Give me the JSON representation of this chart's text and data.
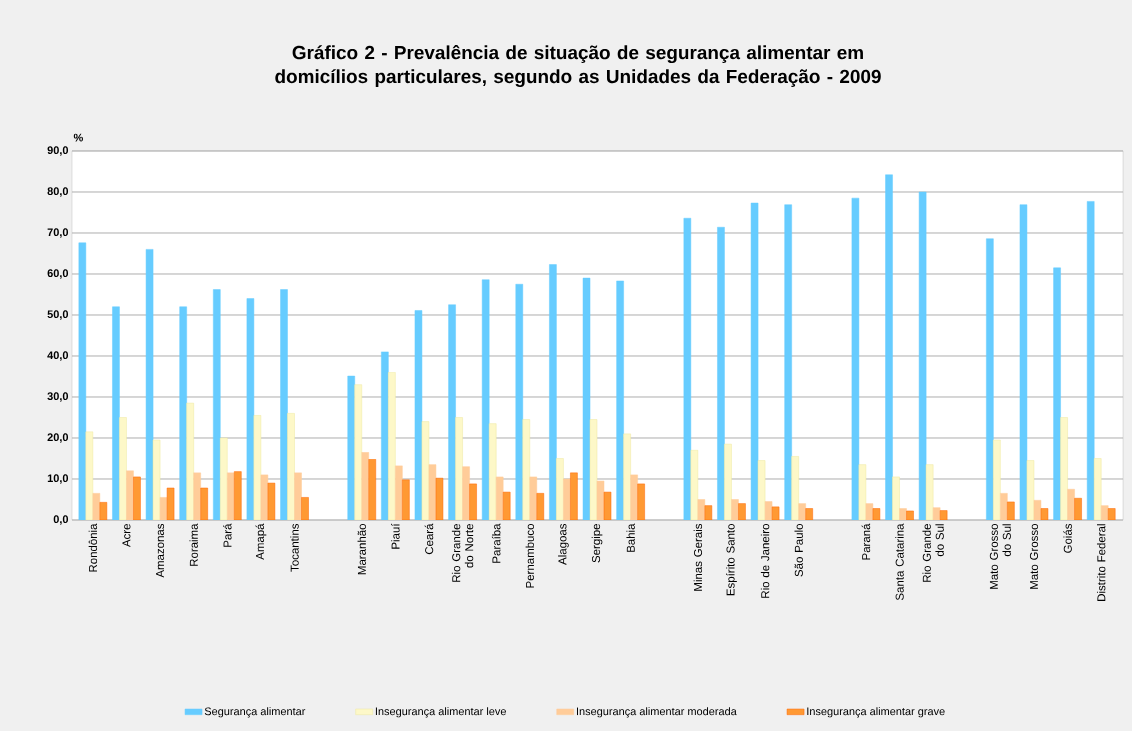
{
  "chart_data": {
    "type": "bar",
    "title": "Gráfico 2 - Prevalência de situação de segurança alimentar em domicílios particulares, segundo as Unidades da Federação -    2009",
    "ylabel": "%",
    "categories": [
      "Rondônia",
      "Acre",
      "Amazonas",
      "Roraima",
      "Pará",
      "Amapá",
      "Tocantins",
      null,
      "Maranhão",
      "Piauí",
      "Ceará",
      "Rio Grande do Norte",
      "Paraíba",
      "Pernambuco",
      "Alagoas",
      "Sergipe",
      "Bahia",
      null,
      "Minas Gerais",
      "Espírito Santo",
      "Rio de Janeiro",
      "São Paulo",
      null,
      "Paraná",
      "Santa Catarina",
      "Rio Grande do Sul",
      null,
      "Mato Grosso do Sul",
      "Mato Grosso",
      "Goiás",
      "Distrito Federal"
    ],
    "series": [
      {
        "name": "Segurança alimentar",
        "color": "#66ccff",
        "values": [
          67.6,
          52.0,
          66.0,
          52.0,
          56.2,
          54.0,
          56.2,
          null,
          35.1,
          41.0,
          51.1,
          52.5,
          58.6,
          57.5,
          62.3,
          59.0,
          58.3,
          null,
          73.6,
          71.4,
          77.3,
          76.9,
          null,
          78.5,
          84.2,
          80.0,
          null,
          68.6,
          76.9,
          61.5,
          77.7
        ]
      },
      {
        "name": "Insegurança alimentar leve",
        "color": "#fdf8c8",
        "values": [
          21.5,
          25.0,
          19.5,
          28.5,
          20.0,
          25.5,
          26.0,
          null,
          33.0,
          36.0,
          24.0,
          25.0,
          23.5,
          24.5,
          15.0,
          24.5,
          21.0,
          null,
          17.0,
          18.5,
          14.5,
          15.5,
          null,
          13.5,
          10.5,
          13.5,
          null,
          19.5,
          14.5,
          25.0,
          15.0
        ]
      },
      {
        "name": "Insegurança alimentar moderada",
        "color": "#ffcc99",
        "values": [
          6.5,
          12.0,
          5.5,
          11.5,
          11.5,
          11.0,
          11.5,
          null,
          16.5,
          13.2,
          13.5,
          13.0,
          10.5,
          10.5,
          10.0,
          9.5,
          11.0,
          null,
          5.0,
          5.0,
          4.5,
          4.0,
          null,
          4.0,
          2.8,
          3.0,
          null,
          6.5,
          4.8,
          7.5,
          3.5
        ]
      },
      {
        "name": "Insegurança alimentar grave",
        "color": "#ff9933",
        "values": [
          4.3,
          10.5,
          7.8,
          7.8,
          11.8,
          9.0,
          5.5,
          null,
          14.8,
          9.8,
          10.2,
          8.8,
          6.8,
          6.5,
          11.5,
          6.8,
          8.8,
          null,
          3.5,
          4.0,
          3.2,
          2.8,
          null,
          2.8,
          2.2,
          2.3,
          null,
          4.4,
          2.8,
          5.3,
          2.8
        ]
      }
    ],
    "ylim": [
      0,
      90
    ],
    "yticks": [
      {
        "value": 0,
        "label": "0,0"
      },
      {
        "value": 10,
        "label": "10,0"
      },
      {
        "value": 20,
        "label": "20,0"
      },
      {
        "value": 30,
        "label": "30,0"
      },
      {
        "value": 40,
        "label": "40,0"
      },
      {
        "value": 50,
        "label": "50,0"
      },
      {
        "value": 60,
        "label": "60,0"
      },
      {
        "value": 70,
        "label": "70,0"
      },
      {
        "value": 80,
        "label": "80,0"
      },
      {
        "value": 90,
        "label": "90,0"
      }
    ],
    "grid": "y",
    "legend": "bottom"
  }
}
